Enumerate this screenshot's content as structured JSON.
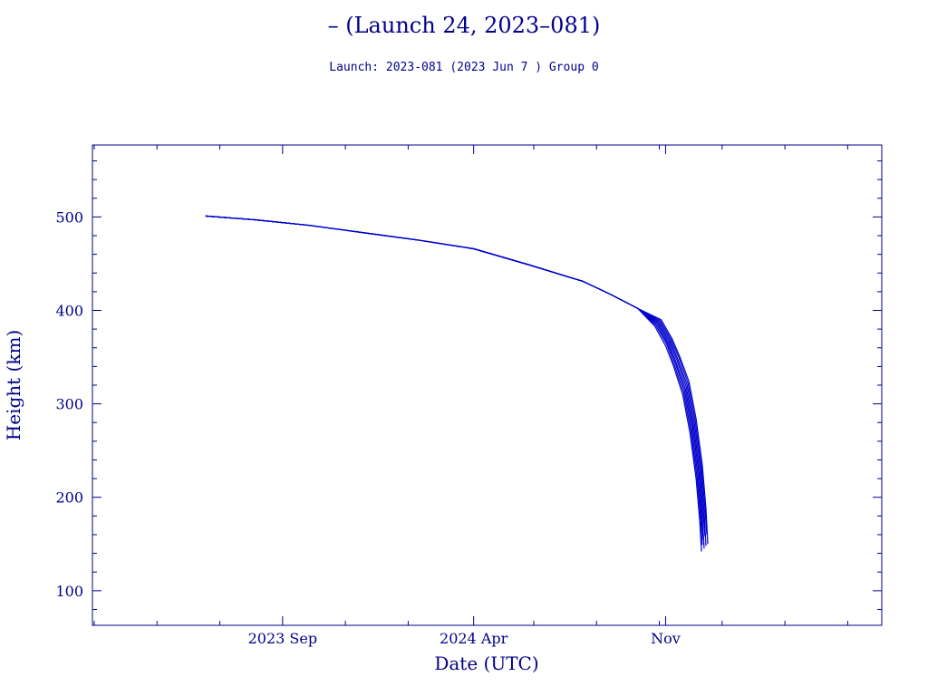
{
  "chart_data": {
    "type": "line",
    "title": "– (Launch 24, 2023–081)",
    "subtitle": "Launch: 2023-081  (2023 Jun  7 )  Group 0",
    "xlabel": "Date (UTC)",
    "ylabel": "Height (km)",
    "xlim": [
      "2023-02-01",
      "2025-06-30"
    ],
    "ylim": [
      63,
      577
    ],
    "x_ticks": [
      {
        "date": "2023-09-01",
        "label": "2023 Sep"
      },
      {
        "date": "2024-04-01",
        "label": "2024 Apr"
      },
      {
        "date": "2024-11-01",
        "label": "Nov"
      }
    ],
    "y_ticks": [
      100,
      200,
      300,
      400,
      500
    ],
    "line_color": "#0000cd",
    "frame_color": "#00008b",
    "grid": false,
    "legend": "none",
    "series": [
      {
        "x": [
          "2023-06-07",
          "2023-08-01",
          "2023-10-01",
          "2023-12-01",
          "2024-02-01",
          "2024-04-01",
          "2024-06-01",
          "2024-08-01",
          "2024-09-01",
          "2024-10-01",
          "2024-10-20",
          "2024-11-01",
          "2024-11-10",
          "2024-11-20",
          "2024-11-28",
          "2024-12-05",
          "2024-12-09",
          "2024-12-11"
        ],
        "y": [
          501,
          497,
          491,
          483,
          475,
          466,
          449,
          431,
          417,
          402,
          383,
          362,
          340,
          310,
          270,
          220,
          175,
          142
        ]
      },
      {
        "x": [
          "2023-06-07",
          "2023-08-01",
          "2023-10-01",
          "2023-12-01",
          "2024-02-01",
          "2024-04-01",
          "2024-06-01",
          "2024-08-01",
          "2024-09-01",
          "2024-10-01",
          "2024-10-21",
          "2024-11-02",
          "2024-11-11",
          "2024-11-21",
          "2024-11-29",
          "2024-12-06",
          "2024-12-10",
          "2024-12-12"
        ],
        "y": [
          501,
          497,
          491,
          483,
          475,
          466,
          449,
          431,
          417,
          402,
          384,
          364,
          341,
          312,
          272,
          222,
          177,
          149
        ]
      },
      {
        "x": [
          "2023-06-07",
          "2023-08-01",
          "2023-10-01",
          "2023-12-01",
          "2024-02-01",
          "2024-04-01",
          "2024-06-01",
          "2024-08-01",
          "2024-09-01",
          "2024-10-01",
          "2024-10-22",
          "2024-11-03",
          "2024-11-12",
          "2024-11-22",
          "2024-11-30",
          "2024-12-07",
          "2024-12-11",
          "2024-12-13"
        ],
        "y": [
          501,
          497,
          491,
          483,
          475,
          466,
          449,
          431,
          417,
          402,
          385,
          365,
          343,
          314,
          274,
          224,
          178,
          155
        ]
      },
      {
        "x": [
          "2023-06-07",
          "2023-08-01",
          "2023-10-01",
          "2023-12-01",
          "2024-02-01",
          "2024-04-01",
          "2024-06-01",
          "2024-08-01",
          "2024-09-01",
          "2024-10-01",
          "2024-10-23",
          "2024-11-04",
          "2024-11-13",
          "2024-11-23",
          "2024-12-01",
          "2024-12-08",
          "2024-12-12",
          "2024-12-14"
        ],
        "y": [
          501,
          497,
          491,
          483,
          475,
          466,
          449,
          431,
          417,
          402,
          386,
          366,
          344,
          316,
          276,
          226,
          180,
          145
        ]
      },
      {
        "x": [
          "2023-06-07",
          "2023-08-01",
          "2023-10-01",
          "2023-12-01",
          "2024-02-01",
          "2024-04-01",
          "2024-06-01",
          "2024-08-01",
          "2024-09-01",
          "2024-10-01",
          "2024-10-24",
          "2024-11-05",
          "2024-11-14",
          "2024-11-24",
          "2024-12-02",
          "2024-12-09",
          "2024-12-13",
          "2024-12-15"
        ],
        "y": [
          501,
          497,
          491,
          483,
          475,
          466,
          449,
          431,
          417,
          402,
          387,
          367,
          346,
          318,
          278,
          228,
          182,
          158
        ]
      },
      {
        "x": [
          "2023-06-07",
          "2023-08-01",
          "2023-10-01",
          "2023-12-01",
          "2024-02-01",
          "2024-04-01",
          "2024-06-01",
          "2024-08-01",
          "2024-09-01",
          "2024-10-01",
          "2024-10-25",
          "2024-11-06",
          "2024-11-15",
          "2024-11-25",
          "2024-12-03",
          "2024-12-10",
          "2024-12-14",
          "2024-12-16"
        ],
        "y": [
          501,
          497,
          491,
          483,
          475,
          466,
          449,
          431,
          417,
          402,
          388,
          368,
          347,
          320,
          280,
          230,
          184,
          148
        ]
      },
      {
        "x": [
          "2023-06-07",
          "2023-08-01",
          "2023-10-01",
          "2023-12-01",
          "2024-02-01",
          "2024-04-01",
          "2024-06-01",
          "2024-08-01",
          "2024-09-01",
          "2024-10-01",
          "2024-10-26",
          "2024-11-07",
          "2024-11-16",
          "2024-11-26",
          "2024-12-04",
          "2024-12-11",
          "2024-12-15",
          "2024-12-17"
        ],
        "y": [
          501,
          497,
          491,
          483,
          475,
          466,
          449,
          431,
          417,
          402,
          389,
          369,
          349,
          322,
          282,
          232,
          186,
          160
        ]
      },
      {
        "x": [
          "2023-06-07",
          "2023-08-01",
          "2023-10-01",
          "2023-12-01",
          "2024-02-01",
          "2024-04-01",
          "2024-06-01",
          "2024-08-01",
          "2024-09-01",
          "2024-10-01",
          "2024-10-27",
          "2024-11-08",
          "2024-11-17",
          "2024-11-27",
          "2024-12-05",
          "2024-12-12",
          "2024-12-16",
          "2024-12-18"
        ],
        "y": [
          501,
          497,
          491,
          483,
          475,
          466,
          449,
          431,
          417,
          402,
          390,
          370,
          350,
          324,
          284,
          234,
          188,
          150
        ]
      }
    ]
  }
}
